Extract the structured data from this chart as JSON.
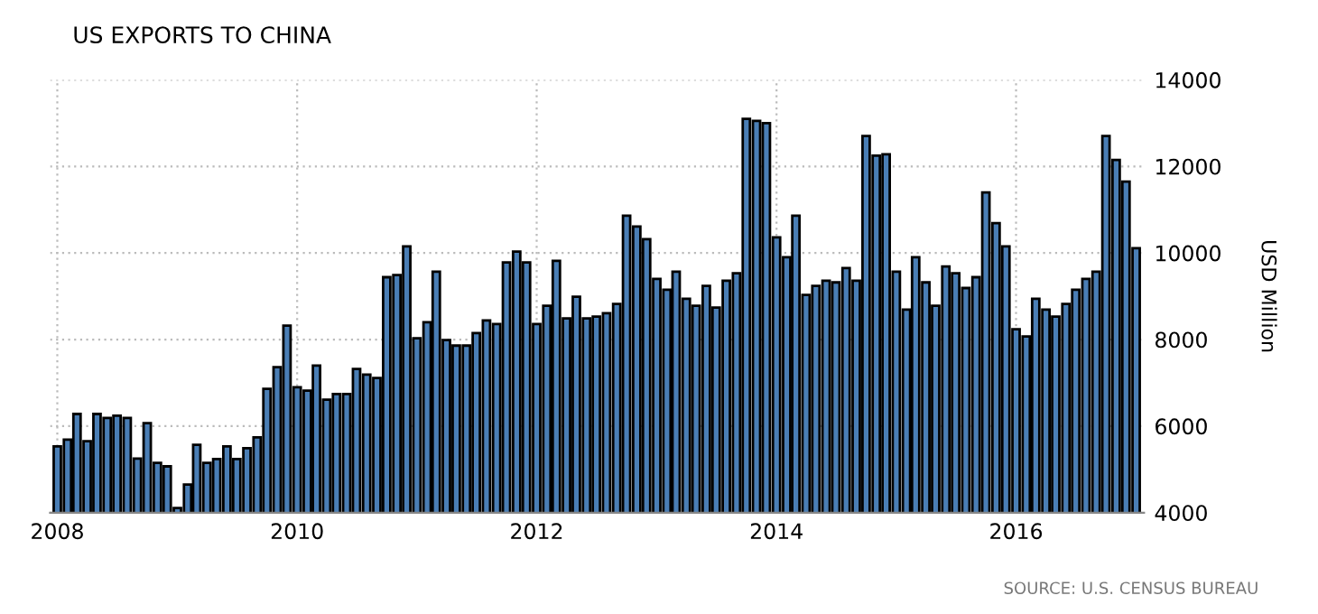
{
  "chart_data": {
    "type": "bar",
    "title": "US EXPORTS TO CHINA",
    "ylabel": "USD Million",
    "x": [
      "2008-01",
      "2008-02",
      "2008-03",
      "2008-04",
      "2008-05",
      "2008-06",
      "2008-07",
      "2008-08",
      "2008-09",
      "2008-10",
      "2008-11",
      "2008-12",
      "2009-01",
      "2009-02",
      "2009-03",
      "2009-04",
      "2009-05",
      "2009-06",
      "2009-07",
      "2009-08",
      "2009-09",
      "2009-10",
      "2009-11",
      "2009-12",
      "2010-01",
      "2010-02",
      "2010-03",
      "2010-04",
      "2010-05",
      "2010-06",
      "2010-07",
      "2010-08",
      "2010-09",
      "2010-10",
      "2010-11",
      "2010-12",
      "2011-01",
      "2011-02",
      "2011-03",
      "2011-04",
      "2011-05",
      "2011-06",
      "2011-07",
      "2011-08",
      "2011-09",
      "2011-10",
      "2011-11",
      "2011-12",
      "2012-01",
      "2012-02",
      "2012-03",
      "2012-04",
      "2012-05",
      "2012-06",
      "2012-07",
      "2012-08",
      "2012-09",
      "2012-10",
      "2012-11",
      "2012-12",
      "2013-01",
      "2013-02",
      "2013-03",
      "2013-04",
      "2013-05",
      "2013-06",
      "2013-07",
      "2013-08",
      "2013-09",
      "2013-10",
      "2013-11",
      "2013-12",
      "2014-01",
      "2014-02",
      "2014-03",
      "2014-04",
      "2014-05",
      "2014-06",
      "2014-07",
      "2014-08",
      "2014-09",
      "2014-10",
      "2014-11",
      "2014-12",
      "2015-01",
      "2015-02",
      "2015-03",
      "2015-04",
      "2015-05",
      "2015-06",
      "2015-07",
      "2015-08",
      "2015-09",
      "2015-10",
      "2015-11",
      "2015-12",
      "2016-01",
      "2016-02",
      "2016-03",
      "2016-04",
      "2016-05",
      "2016-06",
      "2016-07",
      "2016-08",
      "2016-09",
      "2016-10",
      "2016-11",
      "2016-12",
      "2017-01"
    ],
    "values": [
      5530,
      5690,
      6280,
      5650,
      6280,
      6190,
      6240,
      6190,
      5250,
      6070,
      5150,
      5070,
      4110,
      4650,
      5570,
      5150,
      5240,
      5530,
      5240,
      5490,
      5740,
      6860,
      7360,
      8320,
      6900,
      6820,
      7400,
      6610,
      6740,
      6740,
      7320,
      7190,
      7110,
      9440,
      9490,
      10150,
      8030,
      8400,
      9570,
      7990,
      7860,
      7860,
      8150,
      8440,
      8360,
      9780,
      10030,
      9780,
      8360,
      8780,
      9820,
      8490,
      8990,
      8490,
      8530,
      8610,
      8820,
      10860,
      10610,
      10320,
      9400,
      9150,
      9570,
      8940,
      8780,
      9240,
      8740,
      9360,
      9530,
      13100,
      13050,
      13000,
      10360,
      9900,
      10860,
      9030,
      9240,
      9360,
      9320,
      9650,
      9360,
      12700,
      12250,
      12280,
      9570,
      8690,
      9900,
      9320,
      8780,
      9690,
      9530,
      9190,
      9440,
      11400,
      10690,
      10150,
      8240,
      8070,
      8940,
      8690,
      8530,
      8820,
      9150,
      9400,
      9570,
      12700,
      12150,
      11650,
      10110
    ],
    "color": "#4a7eb5",
    "xlim": [
      "2007-12-10",
      "2017-01-25"
    ],
    "xticks": [
      "2008",
      "2010",
      "2012",
      "2014",
      "2016"
    ],
    "ylim": [
      4000,
      14000
    ],
    "yticks": [
      4000,
      6000,
      8000,
      10000,
      12000,
      14000
    ],
    "grid": true,
    "legend": false,
    "annotations": [
      "SOURCE: U.S. CENSUS BUREAU"
    ]
  }
}
